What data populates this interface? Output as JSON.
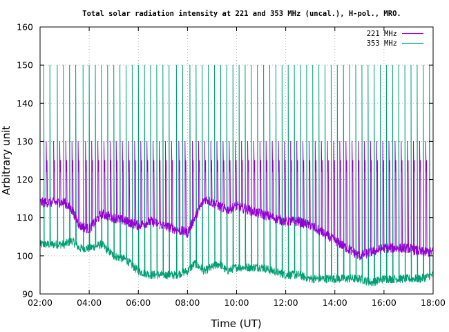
{
  "chart_data": {
    "type": "line",
    "title": "Total solar radiation intensity at 221 and 353 MHz (uncal.), H-pol., MRO.",
    "xlabel": "Time (UT)",
    "ylabel": "Arbitrary unit",
    "xlim": [
      2,
      18
    ],
    "ylim": [
      90,
      160
    ],
    "x_ticks": [
      2,
      4,
      6,
      8,
      10,
      12,
      14,
      16,
      18
    ],
    "x_tick_labels": [
      "02:00",
      "04:00",
      "06:00",
      "08:00",
      "10:00",
      "12:00",
      "14:00",
      "16:00",
      "18:00"
    ],
    "y_ticks": [
      90,
      100,
      110,
      120,
      130,
      140,
      150,
      160
    ],
    "y_tick_labels": [
      "90",
      "100",
      "110",
      "120",
      "130",
      "140",
      "150",
      "160"
    ],
    "grid": true,
    "legend_position": "top-right",
    "series": [
      {
        "name": "221 MHz",
        "color": "#9400d3",
        "x": [
          2.0,
          2.5,
          3.0,
          3.3,
          3.6,
          4.0,
          4.5,
          5.0,
          5.5,
          6.0,
          6.5,
          7.0,
          7.5,
          8.0,
          8.3,
          8.7,
          9.0,
          9.3,
          9.6,
          10.0,
          10.5,
          11.0,
          11.5,
          12.0,
          12.5,
          13.0,
          13.5,
          14.0,
          14.5,
          15.0,
          15.5,
          16.0,
          16.5,
          17.0,
          17.5,
          18.0
        ],
        "values": [
          114,
          114,
          114,
          112,
          108,
          107,
          111,
          110,
          109,
          108,
          109,
          108,
          107,
          106,
          110,
          115,
          114,
          113,
          112,
          113,
          112,
          111,
          110,
          109,
          109,
          108,
          106,
          104,
          102,
          100,
          101,
          102,
          102,
          102,
          101,
          101
        ],
        "spikes": {
          "times": [
            2.25,
            2.55,
            2.8,
            3.05,
            3.3,
            3.55,
            3.85,
            4.1,
            4.35,
            4.6,
            4.85,
            5.1,
            5.35,
            5.6,
            5.85,
            6.1,
            6.35,
            6.6,
            6.85,
            7.1,
            7.35,
            7.65,
            7.9,
            8.2,
            8.45,
            8.7,
            8.95,
            9.2,
            9.45,
            9.7,
            9.95,
            10.2,
            10.45,
            10.7,
            10.95,
            11.2,
            11.45,
            11.7,
            11.95,
            12.2,
            12.45,
            12.7,
            12.95,
            13.2,
            13.45,
            13.7,
            13.95,
            14.2,
            14.45,
            14.7,
            14.95,
            15.2,
            15.45,
            15.7,
            15.95,
            16.2,
            16.45,
            16.7,
            16.95,
            17.2,
            17.45,
            17.7
          ],
          "high_pair": [
            130,
            125
          ],
          "low": 122
        }
      },
      {
        "name": "353 MHz",
        "color": "#009e73",
        "x": [
          2.0,
          2.5,
          3.0,
          3.3,
          3.6,
          4.0,
          4.5,
          5.0,
          5.5,
          6.0,
          6.5,
          7.0,
          7.5,
          8.0,
          8.3,
          8.7,
          9.0,
          9.3,
          9.6,
          10.0,
          10.5,
          11.0,
          11.5,
          12.0,
          12.5,
          13.0,
          13.5,
          14.0,
          14.5,
          15.0,
          15.5,
          16.0,
          16.5,
          17.0,
          17.5,
          18.0
        ],
        "values": [
          103,
          103,
          103,
          104,
          102,
          102,
          103,
          100,
          99,
          96,
          95,
          95,
          95,
          96,
          98,
          96,
          97,
          98,
          96,
          97,
          97,
          97,
          96,
          95,
          95,
          94,
          94,
          94,
          94,
          94,
          93,
          94,
          94,
          94,
          94,
          95
        ],
        "spikes": {
          "times": [
            2.15,
            2.4,
            2.7,
            2.95,
            3.2,
            3.45,
            3.75,
            4.0,
            4.25,
            4.5,
            4.75,
            5.0,
            5.25,
            5.5,
            5.75,
            6.0,
            6.25,
            6.5,
            6.75,
            7.0,
            7.25,
            7.55,
            7.8,
            8.1,
            8.35,
            8.6,
            8.85,
            9.1,
            9.35,
            9.6,
            9.85,
            10.1,
            10.35,
            10.6,
            10.85,
            11.1,
            11.35,
            11.6,
            11.85,
            12.1,
            12.35,
            12.6,
            12.85,
            13.1,
            13.35,
            13.6,
            13.85,
            14.1,
            14.35,
            14.6,
            14.85,
            15.1,
            15.35,
            15.6,
            15.85,
            16.1,
            16.35,
            16.6,
            16.85,
            17.1,
            17.35,
            17.6,
            17.85
          ],
          "high": 150
        }
      }
    ]
  }
}
